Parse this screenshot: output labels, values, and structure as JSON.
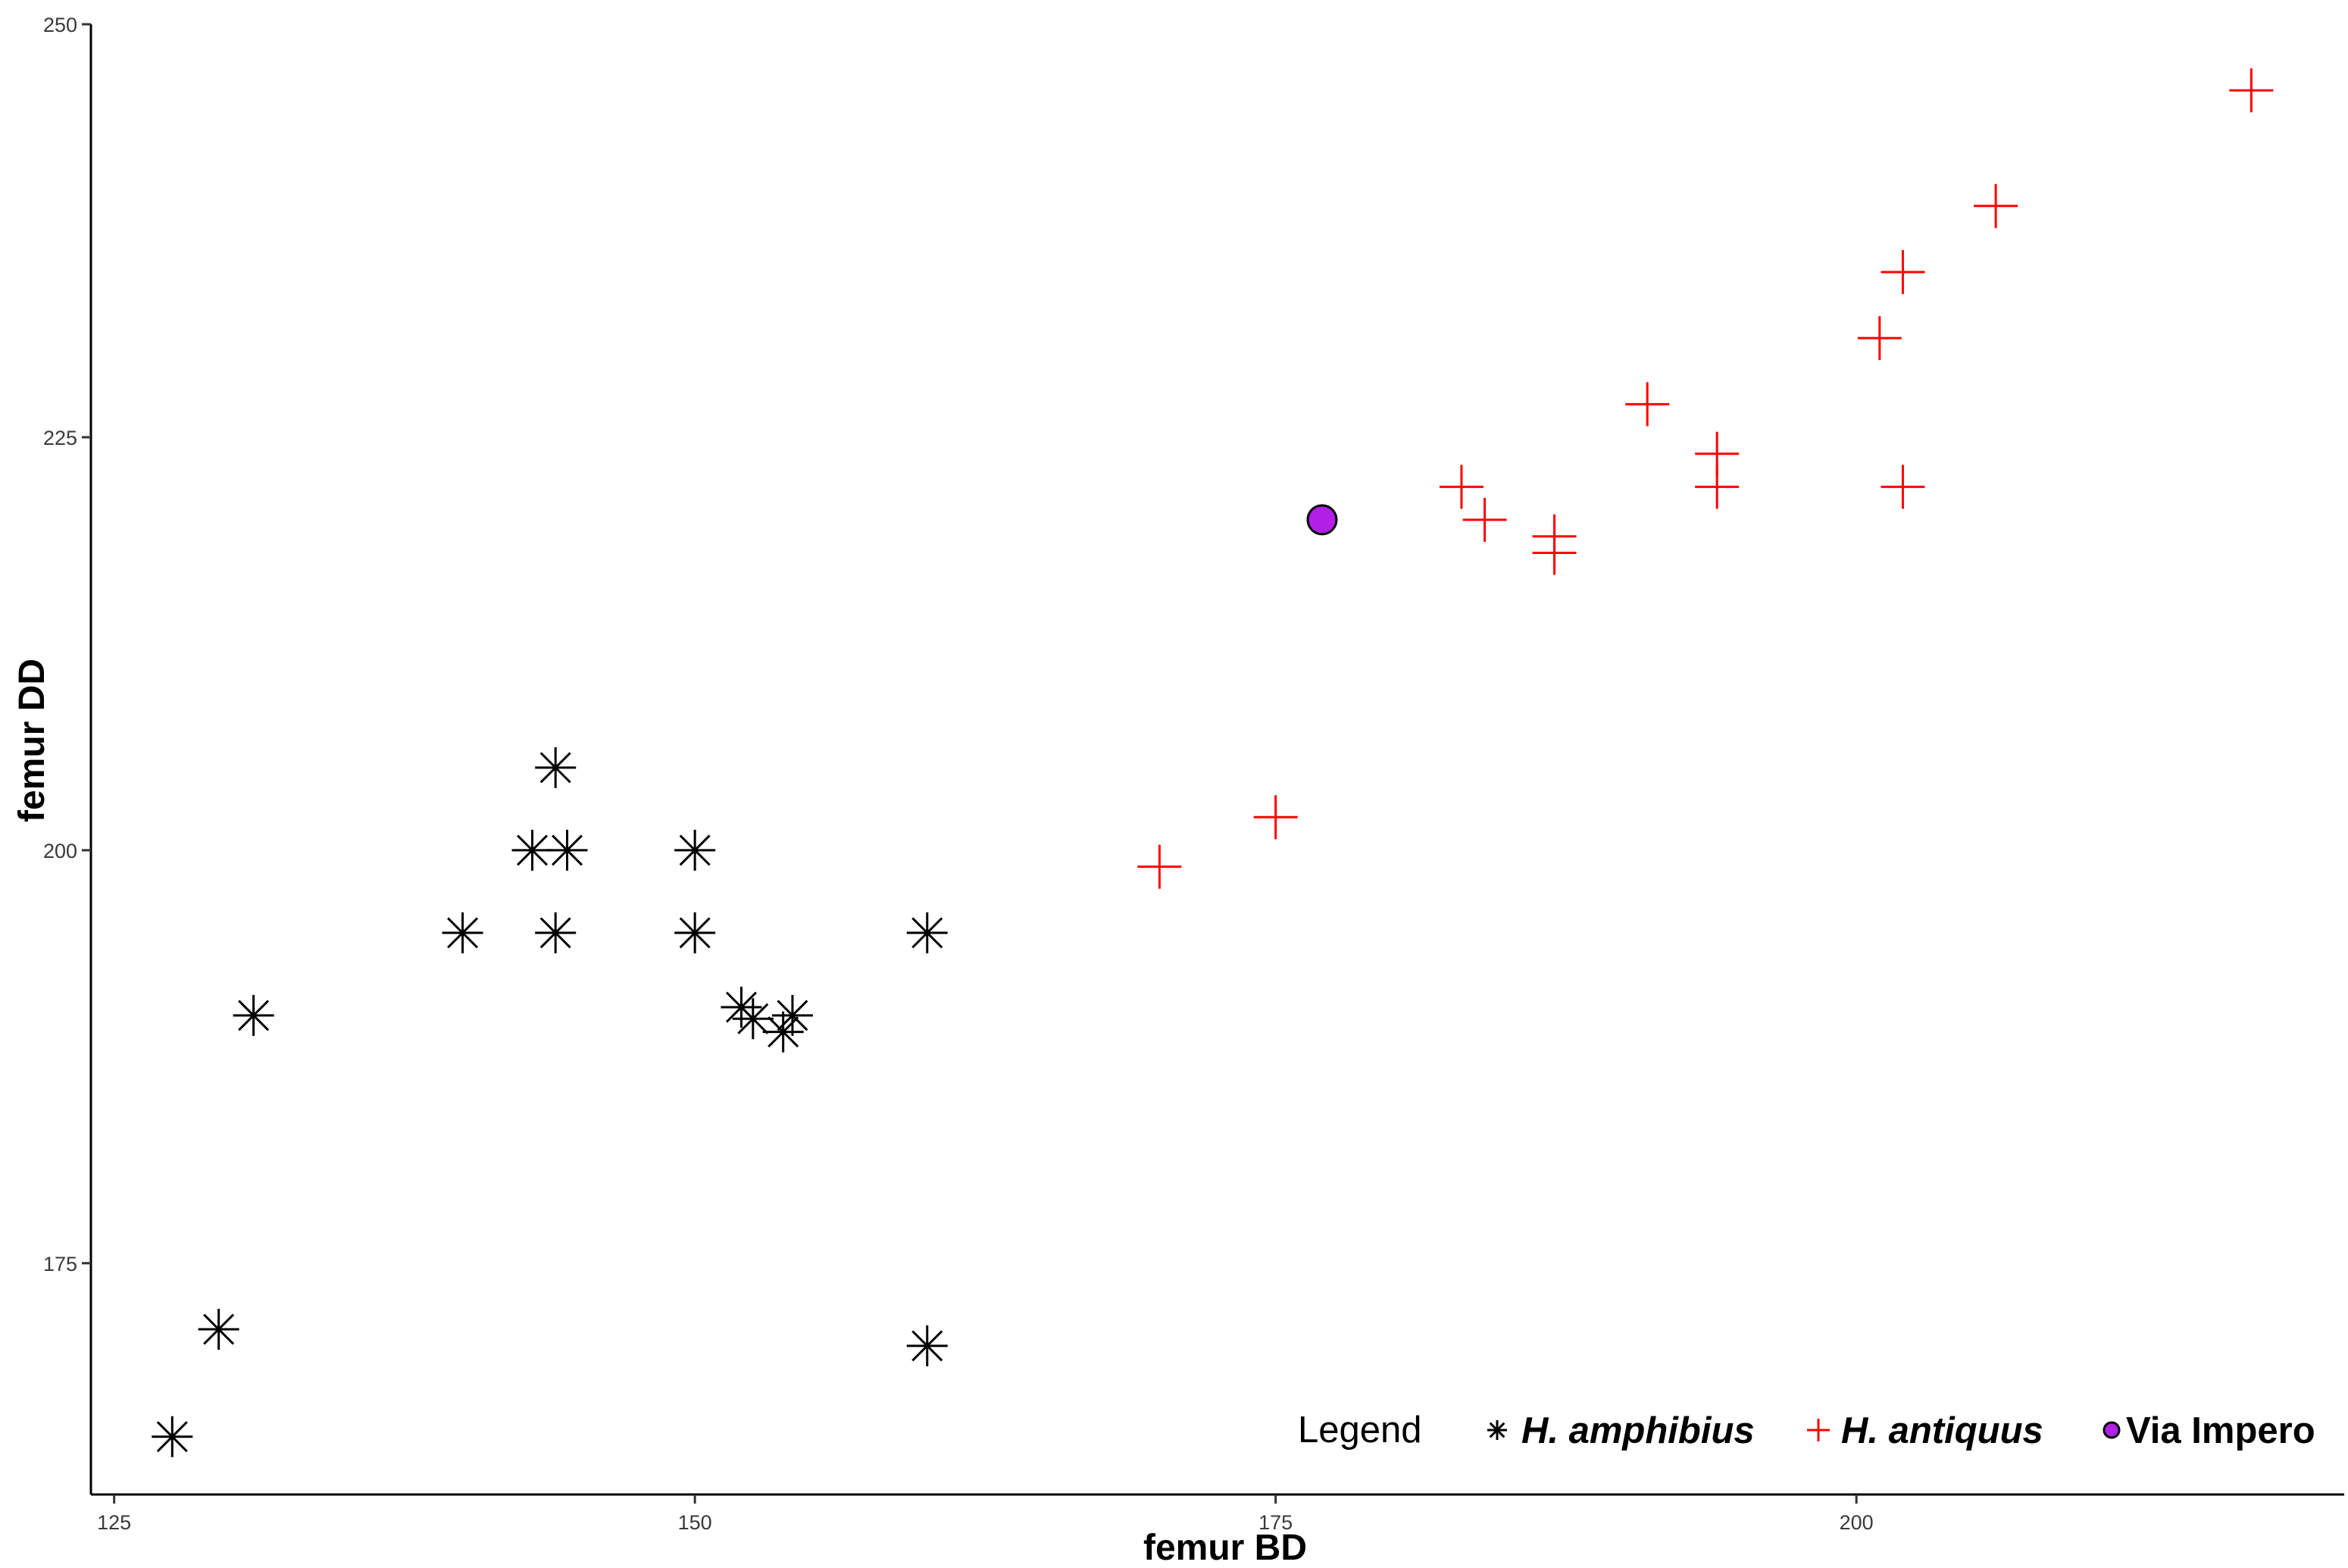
{
  "chart_data": {
    "type": "scatter",
    "xlabel": "femur BD",
    "ylabel": "femur DD",
    "xlim": [
      124,
      221
    ],
    "ylim": [
      161,
      250
    ],
    "x_ticks": [
      125,
      150,
      175,
      200
    ],
    "y_ticks": [
      175,
      200,
      225,
      250
    ],
    "grid": false,
    "legend": {
      "title": "Legend",
      "placement": "bottom-right"
    },
    "series": [
      {
        "name": "H. amphibius",
        "marker": "asterisk",
        "color": "#000000",
        "points": [
          {
            "x": 127.5,
            "y": 164.5
          },
          {
            "x": 129.5,
            "y": 171
          },
          {
            "x": 131,
            "y": 190
          },
          {
            "x": 140,
            "y": 195
          },
          {
            "x": 143,
            "y": 200
          },
          {
            "x": 144,
            "y": 205
          },
          {
            "x": 144,
            "y": 195
          },
          {
            "x": 144.5,
            "y": 200
          },
          {
            "x": 150,
            "y": 200
          },
          {
            "x": 150,
            "y": 195
          },
          {
            "x": 152,
            "y": 190.5
          },
          {
            "x": 152.5,
            "y": 189.8
          },
          {
            "x": 153.8,
            "y": 189
          },
          {
            "x": 154.2,
            "y": 190
          },
          {
            "x": 160,
            "y": 195
          },
          {
            "x": 160,
            "y": 170
          }
        ]
      },
      {
        "name": "H. antiquus",
        "marker": "plus",
        "color": "#ff0000",
        "points": [
          {
            "x": 170,
            "y": 199
          },
          {
            "x": 175,
            "y": 202
          },
          {
            "x": 183,
            "y": 222
          },
          {
            "x": 184,
            "y": 220
          },
          {
            "x": 187,
            "y": 219
          },
          {
            "x": 187,
            "y": 218
          },
          {
            "x": 191,
            "y": 227
          },
          {
            "x": 194,
            "y": 224
          },
          {
            "x": 194,
            "y": 222
          },
          {
            "x": 201,
            "y": 231
          },
          {
            "x": 202,
            "y": 235
          },
          {
            "x": 202,
            "y": 222
          },
          {
            "x": 206,
            "y": 239
          },
          {
            "x": 217,
            "y": 246
          }
        ]
      },
      {
        "name": "Via Impero",
        "marker": "circle",
        "color": "#b21fe6",
        "points": [
          {
            "x": 177,
            "y": 220
          }
        ]
      }
    ]
  }
}
